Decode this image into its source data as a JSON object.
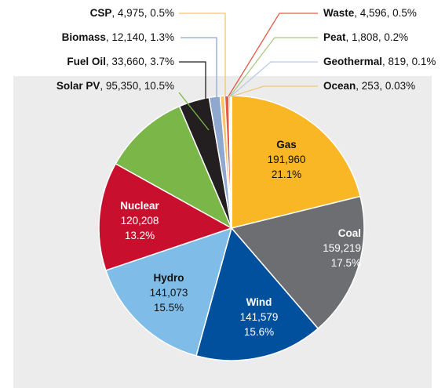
{
  "chart_data": {
    "type": "pie",
    "categories": [
      "Gas",
      "Coal",
      "Wind",
      "Hydro",
      "Nuclear",
      "Solar PV",
      "Fuel Oil",
      "Biomass",
      "CSP",
      "Waste",
      "Peat",
      "Geothermal",
      "Ocean"
    ],
    "values": [
      191960,
      159219,
      141579,
      141073,
      120208,
      95350,
      33660,
      12140,
      4975,
      4596,
      1808,
      819,
      253
    ],
    "value_labels": [
      "191,960",
      "159,219",
      "141,579",
      "141,073",
      "120,208",
      "95,350",
      "33,660",
      "12,140",
      "4,975",
      "4,596",
      "1,808",
      "819",
      "253"
    ],
    "percents": [
      21.1,
      17.5,
      15.6,
      15.5,
      13.2,
      10.5,
      3.7,
      1.3,
      0.5,
      0.5,
      0.2,
      0.1,
      0.03
    ],
    "percent_labels": [
      "21.1%",
      "17.5%",
      "15.6%",
      "15.5%",
      "13.2%",
      "10.5%",
      "3.7%",
      "1.3%",
      "0.5%",
      "0.5%",
      "0.2%",
      "0.1%",
      "0.03%"
    ],
    "label_separator": ", ",
    "colors": [
      "#f9b625",
      "#6d6e71",
      "#00509d",
      "#7fbde8",
      "#c8102e",
      "#7ab648",
      "#231f20",
      "#8fa8d0",
      "#f7c46c",
      "#e05a4a",
      "#a9c97f",
      "#bccbe3",
      "#f0c878"
    ]
  }
}
